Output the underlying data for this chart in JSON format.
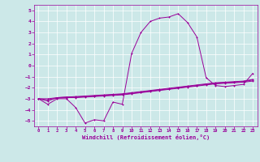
{
  "x": [
    0,
    1,
    2,
    3,
    4,
    5,
    6,
    7,
    8,
    9,
    10,
    11,
    12,
    13,
    14,
    15,
    16,
    17,
    18,
    19,
    20,
    21,
    22,
    23
  ],
  "line1": [
    -3,
    -3.5,
    -3,
    -3,
    -3.8,
    -5.2,
    -4.9,
    -5.0,
    -3.3,
    -3.5,
    1.1,
    3.0,
    4.0,
    4.3,
    4.4,
    4.7,
    3.9,
    2.6,
    -1.1,
    -1.8,
    -1.9,
    -1.8,
    -1.7,
    -0.7
  ],
  "line2": [
    -3,
    -3.2,
    -2.9,
    -2.85,
    -2.85,
    -2.8,
    -2.75,
    -2.7,
    -2.65,
    -2.6,
    -2.5,
    -2.4,
    -2.3,
    -2.2,
    -2.1,
    -2.0,
    -1.9,
    -1.8,
    -1.7,
    -1.6,
    -1.55,
    -1.5,
    -1.45,
    -1.3
  ],
  "line3": [
    -3,
    -3.1,
    -2.95,
    -2.9,
    -2.9,
    -2.85,
    -2.8,
    -2.75,
    -2.7,
    -2.65,
    -2.55,
    -2.45,
    -2.35,
    -2.25,
    -2.15,
    -2.05,
    -1.95,
    -1.85,
    -1.75,
    -1.65,
    -1.6,
    -1.55,
    -1.5,
    -1.4
  ],
  "line4": [
    -3,
    -3.0,
    -2.9,
    -2.85,
    -2.8,
    -2.75,
    -2.7,
    -2.65,
    -2.6,
    -2.55,
    -2.45,
    -2.35,
    -2.25,
    -2.15,
    -2.05,
    -1.95,
    -1.85,
    -1.75,
    -1.65,
    -1.55,
    -1.5,
    -1.45,
    -1.4,
    -1.25
  ],
  "bg_color": "#cce8e8",
  "grid_color": "#ffffff",
  "line_color": "#990099",
  "xlabel": "Windchill (Refroidissement éolien,°C)",
  "ylim": [
    -5.5,
    5.5
  ],
  "xlim": [
    -0.5,
    23.5
  ],
  "yticks": [
    -5,
    -4,
    -3,
    -2,
    -1,
    0,
    1,
    2,
    3,
    4,
    5
  ],
  "xticks": [
    0,
    1,
    2,
    3,
    4,
    5,
    6,
    7,
    8,
    9,
    10,
    11,
    12,
    13,
    14,
    15,
    16,
    17,
    18,
    19,
    20,
    21,
    22,
    23
  ]
}
